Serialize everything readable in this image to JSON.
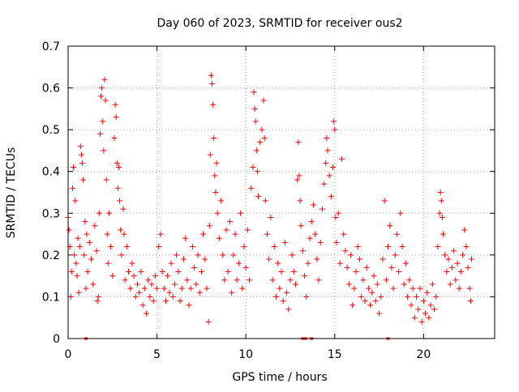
{
  "chart_data": {
    "type": "scatter",
    "title": "Day 060 of 2023, SRMTID for receiver ous2",
    "xlabel": "GPS time / hours",
    "ylabel": "SRMTID / TECUs",
    "xlim": [
      0,
      24
    ],
    "ylim": [
      0,
      0.7
    ],
    "grid": true,
    "marker": "+",
    "color": "#ff0000",
    "x_ticks": [
      0,
      5,
      10,
      15,
      20
    ],
    "x_tick_labels": [
      "0",
      "5",
      "10",
      "15",
      "20"
    ],
    "y_ticks": [
      0,
      0.1,
      0.2,
      0.3,
      0.4,
      0.5,
      0.6,
      0.7
    ],
    "y_tick_labels": [
      "0",
      "0.1",
      "0.2",
      "0.3",
      "0.4",
      "0.5",
      "0.6",
      "0.7"
    ],
    "gap_markers_x": [
      1.0,
      13.2,
      13.35,
      13.7,
      18.0
    ],
    "series": [
      {
        "name": "SRMTID",
        "points": [
          [
            0.0,
            0.29
          ],
          [
            0.05,
            0.26
          ],
          [
            0.1,
            0.22
          ],
          [
            0.15,
            0.1
          ],
          [
            0.2,
            0.16
          ],
          [
            0.25,
            0.36
          ],
          [
            0.3,
            0.41
          ],
          [
            0.35,
            0.2
          ],
          [
            0.4,
            0.33
          ],
          [
            0.45,
            0.18
          ],
          [
            0.5,
            0.15
          ],
          [
            0.55,
            0.24
          ],
          [
            0.6,
            0.11
          ],
          [
            0.65,
            0.22
          ],
          [
            0.7,
            0.46
          ],
          [
            0.75,
            0.44
          ],
          [
            0.8,
            0.42
          ],
          [
            0.85,
            0.38
          ],
          [
            0.9,
            0.2
          ],
          [
            0.95,
            0.28
          ],
          [
            1.0,
            0.12
          ],
          [
            1.05,
            0.25
          ],
          [
            1.1,
            0.16
          ],
          [
            1.2,
            0.23
          ],
          [
            1.3,
            0.19
          ],
          [
            1.4,
            0.13
          ],
          [
            1.5,
            0.27
          ],
          [
            1.6,
            0.21
          ],
          [
            1.65,
            0.09
          ],
          [
            1.7,
            0.1
          ],
          [
            1.75,
            0.3
          ],
          [
            1.8,
            0.49
          ],
          [
            1.85,
            0.58
          ],
          [
            1.9,
            0.6
          ],
          [
            1.95,
            0.52
          ],
          [
            2.0,
            0.45
          ],
          [
            2.05,
            0.62
          ],
          [
            2.1,
            0.57
          ],
          [
            2.15,
            0.38
          ],
          [
            2.2,
            0.25
          ],
          [
            2.25,
            0.18
          ],
          [
            2.3,
            0.3
          ],
          [
            2.4,
            0.22
          ],
          [
            2.5,
            0.15
          ],
          [
            2.6,
            0.48
          ],
          [
            2.65,
            0.56
          ],
          [
            2.7,
            0.53
          ],
          [
            2.75,
            0.42
          ],
          [
            2.8,
            0.36
          ],
          [
            2.85,
            0.41
          ],
          [
            2.9,
            0.33
          ],
          [
            2.95,
            0.26
          ],
          [
            3.0,
            0.2
          ],
          [
            3.1,
            0.31
          ],
          [
            3.15,
            0.25
          ],
          [
            3.2,
            0.14
          ],
          [
            3.3,
            0.22
          ],
          [
            3.4,
            0.16
          ],
          [
            3.5,
            0.12
          ],
          [
            3.6,
            0.18
          ],
          [
            3.7,
            0.15
          ],
          [
            3.8,
            0.1
          ],
          [
            3.9,
            0.13
          ],
          [
            4.0,
            0.11
          ],
          [
            4.1,
            0.16
          ],
          [
            4.2,
            0.08
          ],
          [
            4.3,
            0.12
          ],
          [
            4.4,
            0.06
          ],
          [
            4.5,
            0.14
          ],
          [
            4.6,
            0.1
          ],
          [
            4.7,
            0.13
          ],
          [
            4.8,
            0.09
          ],
          [
            4.9,
            0.15
          ],
          [
            5.0,
            0.12
          ],
          [
            5.1,
            0.22
          ],
          [
            5.2,
            0.25
          ],
          [
            5.3,
            0.16
          ],
          [
            5.4,
            0.12
          ],
          [
            5.5,
            0.09
          ],
          [
            5.6,
            0.15
          ],
          [
            5.7,
            0.11
          ],
          [
            5.8,
            0.18
          ],
          [
            5.9,
            0.1
          ],
          [
            6.0,
            0.13
          ],
          [
            6.1,
            0.2
          ],
          [
            6.2,
            0.16
          ],
          [
            6.3,
            0.09
          ],
          [
            6.4,
            0.12
          ],
          [
            6.5,
            0.19
          ],
          [
            6.6,
            0.24
          ],
          [
            6.7,
            0.14
          ],
          [
            6.8,
            0.08
          ],
          [
            6.9,
            0.12
          ],
          [
            7.0,
            0.22
          ],
          [
            7.1,
            0.17
          ],
          [
            7.2,
            0.13
          ],
          [
            7.3,
            0.2
          ],
          [
            7.4,
            0.11
          ],
          [
            7.5,
            0.16
          ],
          [
            7.6,
            0.25
          ],
          [
            7.7,
            0.19
          ],
          [
            7.8,
            0.12
          ],
          [
            7.9,
            0.04
          ],
          [
            7.95,
            0.27
          ],
          [
            8.0,
            0.44
          ],
          [
            8.05,
            0.63
          ],
          [
            8.1,
            0.61
          ],
          [
            8.15,
            0.56
          ],
          [
            8.2,
            0.48
          ],
          [
            8.25,
            0.39
          ],
          [
            8.3,
            0.35
          ],
          [
            8.35,
            0.42
          ],
          [
            8.4,
            0.3
          ],
          [
            8.5,
            0.24
          ],
          [
            8.6,
            0.33
          ],
          [
            8.7,
            0.2
          ],
          [
            8.8,
            0.14
          ],
          [
            8.9,
            0.26
          ],
          [
            9.0,
            0.16
          ],
          [
            9.1,
            0.28
          ],
          [
            9.2,
            0.11
          ],
          [
            9.3,
            0.2
          ],
          [
            9.4,
            0.25
          ],
          [
            9.5,
            0.14
          ],
          [
            9.6,
            0.18
          ],
          [
            9.7,
            0.3
          ],
          [
            9.8,
            0.12
          ],
          [
            9.9,
            0.22
          ],
          [
            10.0,
            0.17
          ],
          [
            10.1,
            0.26
          ],
          [
            10.2,
            0.14
          ],
          [
            10.3,
            0.36
          ],
          [
            10.4,
            0.41
          ],
          [
            10.45,
            0.59
          ],
          [
            10.5,
            0.55
          ],
          [
            10.55,
            0.52
          ],
          [
            10.6,
            0.45
          ],
          [
            10.65,
            0.4
          ],
          [
            10.7,
            0.34
          ],
          [
            10.8,
            0.47
          ],
          [
            10.9,
            0.5
          ],
          [
            11.0,
            0.57
          ],
          [
            11.05,
            0.48
          ],
          [
            11.1,
            0.33
          ],
          [
            11.2,
            0.25
          ],
          [
            11.3,
            0.19
          ],
          [
            11.4,
            0.29
          ],
          [
            11.5,
            0.14
          ],
          [
            11.6,
            0.22
          ],
          [
            11.7,
            0.1
          ],
          [
            11.8,
            0.18
          ],
          [
            11.9,
            0.12
          ],
          [
            12.0,
            0.16
          ],
          [
            12.1,
            0.09
          ],
          [
            12.2,
            0.23
          ],
          [
            12.3,
            0.11
          ],
          [
            12.4,
            0.07
          ],
          [
            12.5,
            0.14
          ],
          [
            12.6,
            0.2
          ],
          [
            12.7,
            0.16
          ],
          [
            12.8,
            0.13
          ],
          [
            12.9,
            0.38
          ],
          [
            12.95,
            0.47
          ],
          [
            13.0,
            0.39
          ],
          [
            13.05,
            0.33
          ],
          [
            13.1,
            0.27
          ],
          [
            13.2,
            0.21
          ],
          [
            13.3,
            0.15
          ],
          [
            13.4,
            0.1
          ],
          [
            13.5,
            0.18
          ],
          [
            13.6,
            0.24
          ],
          [
            13.7,
            0.28
          ],
          [
            13.8,
            0.32
          ],
          [
            13.9,
            0.25
          ],
          [
            14.0,
            0.19
          ],
          [
            14.1,
            0.14
          ],
          [
            14.2,
            0.23
          ],
          [
            14.3,
            0.31
          ],
          [
            14.4,
            0.37
          ],
          [
            14.5,
            0.42
          ],
          [
            14.55,
            0.48
          ],
          [
            14.6,
            0.45
          ],
          [
            14.7,
            0.39
          ],
          [
            14.8,
            0.34
          ],
          [
            14.9,
            0.41
          ],
          [
            14.95,
            0.52
          ],
          [
            15.0,
            0.5
          ],
          [
            15.05,
            0.29
          ],
          [
            15.1,
            0.23
          ],
          [
            15.2,
            0.3
          ],
          [
            15.3,
            0.18
          ],
          [
            15.4,
            0.43
          ],
          [
            15.5,
            0.25
          ],
          [
            15.6,
            0.21
          ],
          [
            15.7,
            0.17
          ],
          [
            15.8,
            0.13
          ],
          [
            15.9,
            0.2
          ],
          [
            16.0,
            0.08
          ],
          [
            16.1,
            0.12
          ],
          [
            16.2,
            0.16
          ],
          [
            16.3,
            0.22
          ],
          [
            16.4,
            0.19
          ],
          [
            16.5,
            0.1
          ],
          [
            16.6,
            0.14
          ],
          [
            16.7,
            0.09
          ],
          [
            16.8,
            0.17
          ],
          [
            16.9,
            0.12
          ],
          [
            17.0,
            0.08
          ],
          [
            17.1,
            0.11
          ],
          [
            17.2,
            0.15
          ],
          [
            17.3,
            0.09
          ],
          [
            17.4,
            0.13
          ],
          [
            17.5,
            0.06
          ],
          [
            17.6,
            0.1
          ],
          [
            17.7,
            0.19
          ],
          [
            17.8,
            0.33
          ],
          [
            17.9,
            0.14
          ],
          [
            18.0,
            0.22
          ],
          [
            18.1,
            0.27
          ],
          [
            18.2,
            0.17
          ],
          [
            18.3,
            0.12
          ],
          [
            18.4,
            0.2
          ],
          [
            18.5,
            0.25
          ],
          [
            18.6,
            0.16
          ],
          [
            18.7,
            0.3
          ],
          [
            18.8,
            0.22
          ],
          [
            18.9,
            0.13
          ],
          [
            19.0,
            0.18
          ],
          [
            19.1,
            0.1
          ],
          [
            19.2,
            0.14
          ],
          [
            19.3,
            0.08
          ],
          [
            19.4,
            0.12
          ],
          [
            19.5,
            0.05
          ],
          [
            19.6,
            0.1
          ],
          [
            19.7,
            0.07
          ],
          [
            19.8,
            0.12
          ],
          [
            19.9,
            0.04
          ],
          [
            20.0,
            0.09
          ],
          [
            20.1,
            0.06
          ],
          [
            20.2,
            0.11
          ],
          [
            20.3,
            0.05
          ],
          [
            20.4,
            0.08
          ],
          [
            20.5,
            0.13
          ],
          [
            20.6,
            0.07
          ],
          [
            20.7,
            0.1
          ],
          [
            20.8,
            0.22
          ],
          [
            20.9,
            0.3
          ],
          [
            20.95,
            0.35
          ],
          [
            21.0,
            0.33
          ],
          [
            21.05,
            0.29
          ],
          [
            21.1,
            0.25
          ],
          [
            21.2,
            0.2
          ],
          [
            21.3,
            0.16
          ],
          [
            21.4,
            0.19
          ],
          [
            21.5,
            0.13
          ],
          [
            21.6,
            0.17
          ],
          [
            21.7,
            0.21
          ],
          [
            21.8,
            0.14
          ],
          [
            21.9,
            0.18
          ],
          [
            22.0,
            0.12
          ],
          [
            22.1,
            0.16
          ],
          [
            22.2,
            0.2
          ],
          [
            22.3,
            0.26
          ],
          [
            22.4,
            0.22
          ],
          [
            22.5,
            0.17
          ],
          [
            22.6,
            0.12
          ],
          [
            22.65,
            0.09
          ],
          [
            22.7,
            0.19
          ]
        ]
      }
    ]
  }
}
